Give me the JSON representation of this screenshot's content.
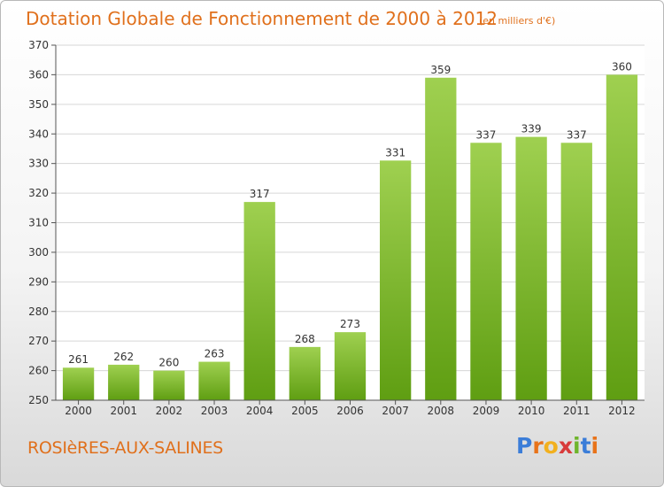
{
  "header": {
    "title": "Dotation Globale de Fonctionnement de 2000 à 2012",
    "unit": "(en milliers d'€)"
  },
  "footer": {
    "commune": "ROSIèRES-AUX-SALINES",
    "logo_letters": [
      "P",
      "r",
      "o",
      "x",
      "i",
      "t",
      "i"
    ],
    "logo_colors": [
      "#3b7dd8",
      "#e8731a",
      "#f2b01e",
      "#d83b3b",
      "#6fb52c",
      "#3b7dd8",
      "#e8731a"
    ]
  },
  "colors": {
    "bar_top": "#9fd050",
    "bar_bottom": "#5f9e12",
    "grid": "#d6d6d6",
    "axis": "#555555",
    "title": "#e0701c"
  },
  "chart_data": {
    "type": "bar",
    "title": "Dotation Globale de Fonctionnement de 2000 à 2012",
    "xlabel": "",
    "ylabel": "",
    "categories": [
      "2000",
      "2001",
      "2002",
      "2003",
      "2004",
      "2005",
      "2006",
      "2007",
      "2008",
      "2009",
      "2010",
      "2011",
      "2012"
    ],
    "values": [
      261,
      262,
      260,
      263,
      317,
      268,
      273,
      331,
      359,
      337,
      339,
      337,
      360
    ],
    "ylim": [
      250,
      370
    ],
    "yticks": [
      250,
      260,
      270,
      280,
      290,
      300,
      310,
      320,
      330,
      340,
      350,
      360,
      370
    ],
    "grid": true,
    "legend": "none"
  }
}
